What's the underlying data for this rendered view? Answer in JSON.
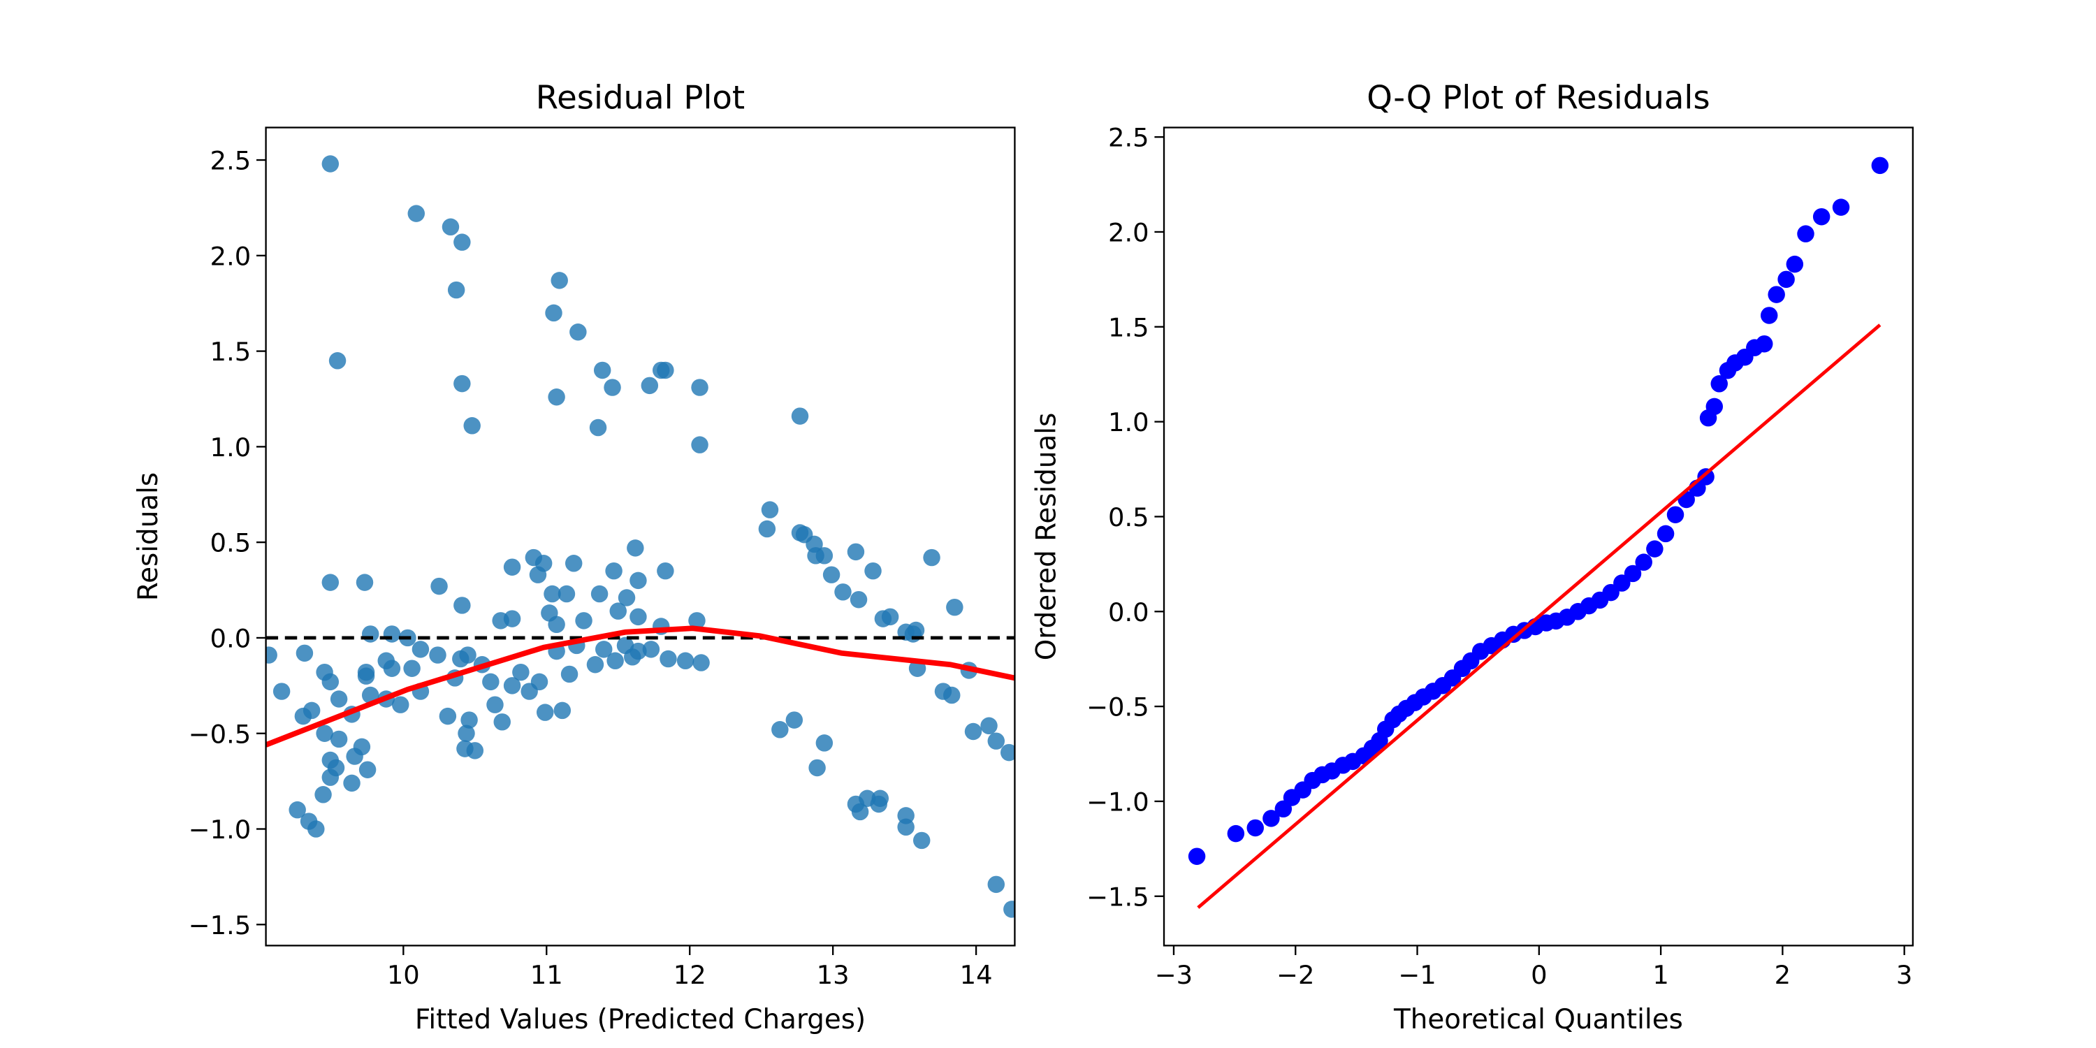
{
  "chart_data": [
    {
      "type": "scatter",
      "title": "Residual Plot",
      "xlabel": "Fitted Values (Predicted Charges)",
      "ylabel": "Residuals",
      "color": "#1f77b4",
      "alpha": 0.8,
      "x": [
        9.49,
        10.09,
        10.33,
        10.41,
        10.37,
        9.54,
        11.05,
        11.09,
        11.22,
        10.41,
        11.07,
        11.39,
        11.46,
        11.72,
        11.8,
        11.83,
        12.07,
        10.48,
        11.36,
        12.07,
        12.77,
        12.56,
        12.54,
        12.77,
        12.8,
        12.87,
        12.88,
        12.94,
        13.16,
        13.28,
        12.99,
        13.07,
        13.18,
        13.69,
        13.85,
        13.35,
        13.4,
        13.56,
        13.51,
        13.58,
        13.59,
        13.95,
        13.77,
        13.83,
        13.98,
        14.09,
        14.14,
        14.23,
        12.63,
        12.73,
        12.94,
        12.89,
        13.16,
        13.19,
        13.24,
        13.32,
        13.33,
        13.51,
        13.51,
        13.62,
        14.14,
        14.25,
        9.73,
        9.49,
        10.25,
        10.41,
        10.76,
        10.91,
        10.98,
        11.19,
        11.62,
        11.83,
        11.47,
        11.64,
        10.94,
        11.04,
        11.14,
        11.37,
        11.56,
        11.5,
        11.64,
        11.26,
        11.02,
        11.07,
        10.68,
        10.76,
        12.05,
        11.8,
        9.77,
        9.92,
        10.03,
        10.12,
        9.06,
        9.31,
        9.15,
        9.45,
        9.49,
        9.74,
        9.74,
        9.88,
        9.92,
        10.06,
        10.24,
        10.4,
        10.45,
        10.55,
        10.36,
        10.12,
        9.77,
        9.88,
        9.55,
        9.98,
        10.31,
        10.46,
        10.64,
        10.69,
        9.64,
        9.3,
        9.36,
        9.45,
        9.55,
        9.71,
        9.66,
        9.49,
        9.53,
        9.75,
        9.49,
        9.64,
        9.44,
        9.26,
        9.34,
        9.39,
        10.44,
        10.43,
        10.5,
        10.99,
        11.11,
        10.88,
        10.95,
        11.16,
        11.34,
        11.48,
        11.6,
        11.73,
        11.85,
        11.97,
        12.08,
        10.82,
        10.76,
        10.61,
        11.07,
        11.21,
        11.4,
        11.55,
        11.64
      ],
      "values": [
        2.48,
        2.22,
        2.15,
        2.07,
        1.82,
        1.45,
        1.7,
        1.87,
        1.6,
        1.33,
        1.26,
        1.4,
        1.31,
        1.32,
        1.4,
        1.4,
        1.31,
        1.11,
        1.1,
        1.01,
        1.16,
        0.67,
        0.57,
        0.55,
        0.54,
        0.49,
        0.43,
        0.43,
        0.45,
        0.35,
        0.33,
        0.24,
        0.2,
        0.42,
        0.16,
        0.1,
        0.11,
        0.02,
        0.03,
        0.04,
        -0.16,
        -0.17,
        -0.28,
        -0.3,
        -0.49,
        -0.46,
        -0.54,
        -0.6,
        -0.48,
        -0.43,
        -0.55,
        -0.68,
        -0.87,
        -0.91,
        -0.84,
        -0.87,
        -0.84,
        -0.93,
        -0.99,
        -1.06,
        -1.29,
        -1.42,
        0.29,
        0.29,
        0.27,
        0.17,
        0.37,
        0.42,
        0.39,
        0.39,
        0.47,
        0.35,
        0.35,
        0.3,
        0.33,
        0.23,
        0.23,
        0.23,
        0.21,
        0.14,
        0.11,
        0.09,
        0.13,
        0.07,
        0.09,
        0.1,
        0.09,
        0.06,
        0.02,
        0.02,
        0,
        -0.06,
        -0.09,
        -0.08,
        -0.28,
        -0.18,
        -0.23,
        -0.18,
        -0.2,
        -0.12,
        -0.16,
        -0.16,
        -0.09,
        -0.11,
        -0.09,
        -0.14,
        -0.21,
        -0.28,
        -0.3,
        -0.32,
        -0.32,
        -0.35,
        -0.41,
        -0.43,
        -0.35,
        -0.44,
        -0.4,
        -0.41,
        -0.38,
        -0.5,
        -0.53,
        -0.57,
        -0.62,
        -0.64,
        -0.68,
        -0.69,
        -0.73,
        -0.76,
        -0.82,
        -0.9,
        -0.96,
        -1,
        -0.5,
        -0.58,
        -0.59,
        -0.39,
        -0.38,
        -0.28,
        -0.23,
        -0.19,
        -0.14,
        -0.12,
        -0.1,
        -0.06,
        -0.11,
        -0.12,
        -0.13,
        -0.18,
        -0.25,
        -0.23,
        -0.07,
        -0.04,
        -0.06,
        -0.04,
        -0.07
      ],
      "lines": [
        {
          "x": [
            9.04,
            10.03,
            10.98,
            11.55,
            12.02,
            12.49,
            13.06,
            13.82,
            14.27
          ],
          "values": [
            -0.56,
            -0.27,
            -0.05,
            0.03,
            0.05,
            0.01,
            -0.08,
            -0.14,
            -0.21
          ],
          "color": "#ff0000",
          "width": 4
        }
      ],
      "hline": {
        "value": 0,
        "color": "#000000",
        "dashed": true
      },
      "xlim": [
        9.04,
        14.27
      ],
      "xticks": [
        10,
        11,
        12,
        13,
        14
      ],
      "ylim": [
        -1.61,
        2.67
      ],
      "yticks": [
        {
          "value": -1.5,
          "label": "−1.5"
        },
        {
          "value": -1,
          "label": "−1.0"
        },
        {
          "value": -0.5,
          "label": "−0.5"
        },
        {
          "value": 0,
          "label": "0.0"
        },
        0.5,
        {
          "value": 1,
          "label": "1.0"
        },
        1.5,
        {
          "value": 2,
          "label": "2.0"
        },
        2.5
      ]
    },
    {
      "type": "scatter",
      "title": "Q-Q Plot of Residuals",
      "xlabel": "Theoretical Quantiles",
      "ylabel": "Ordered Residuals",
      "color": "#0000ff",
      "alpha": 1,
      "x": [
        -2.81,
        -2.49,
        -2.33,
        -2.2,
        -2.1,
        -2.03,
        -1.94,
        -1.86,
        -1.78,
        -1.7,
        -1.61,
        -1.53,
        -1.44,
        -1.37,
        -1.31,
        -1.26,
        -1.2,
        -1.15,
        -1.09,
        -1.02,
        -0.95,
        -0.87,
        -0.79,
        -0.71,
        -0.63,
        -0.56,
        -0.48,
        -0.39,
        -0.3,
        -0.21,
        -0.12,
        -0.03,
        0.06,
        0.14,
        0.23,
        0.32,
        0.41,
        0.5,
        0.59,
        0.68,
        0.77,
        0.86,
        0.95,
        1.04,
        1.12,
        1.21,
        1.3,
        1.37,
        1.39,
        1.44,
        1.48,
        1.55,
        1.61,
        1.69,
        1.77,
        1.85,
        1.89,
        1.95,
        2.03,
        2.1,
        2.19,
        2.32,
        2.48,
        2.8
      ],
      "values": [
        -1.29,
        -1.17,
        -1.14,
        -1.09,
        -1.04,
        -0.98,
        -0.94,
        -0.89,
        -0.86,
        -0.84,
        -0.81,
        -0.79,
        -0.76,
        -0.72,
        -0.68,
        -0.62,
        -0.57,
        -0.54,
        -0.51,
        -0.48,
        -0.45,
        -0.42,
        -0.39,
        -0.35,
        -0.3,
        -0.26,
        -0.21,
        -0.18,
        -0.15,
        -0.12,
        -0.1,
        -0.08,
        -0.06,
        -0.05,
        -0.03,
        0,
        0.03,
        0.06,
        0.1,
        0.15,
        0.2,
        0.26,
        0.33,
        0.41,
        0.51,
        0.59,
        0.65,
        0.71,
        1.02,
        1.08,
        1.2,
        1.27,
        1.31,
        1.34,
        1.39,
        1.41,
        1.56,
        1.67,
        1.75,
        1.83,
        1.99,
        2.08,
        2.13,
        2.35
      ],
      "lines": [
        {
          "x": [
            -2.8,
            2.8
          ],
          "values": [
            -1.56,
            1.51
          ],
          "color": "#ff0000",
          "width": 2.5
        }
      ],
      "xlim": [
        -3.08,
        3.07
      ],
      "xticks": [
        {
          "value": -3,
          "label": "−3"
        },
        {
          "value": -2,
          "label": "−2"
        },
        {
          "value": -1,
          "label": "−1"
        },
        0,
        1,
        2,
        3
      ],
      "ylim": [
        -1.76,
        2.55
      ],
      "yticks": [
        {
          "value": -1.5,
          "label": "−1.5"
        },
        {
          "value": -1,
          "label": "−1.0"
        },
        {
          "value": -0.5,
          "label": "−0.5"
        },
        {
          "value": 0,
          "label": "0.0"
        },
        0.5,
        {
          "value": 1,
          "label": "1.0"
        },
        1.5,
        {
          "value": 2,
          "label": "2.0"
        },
        2.5
      ]
    }
  ]
}
